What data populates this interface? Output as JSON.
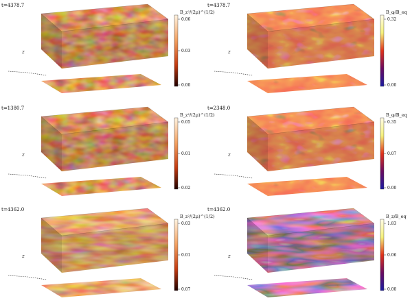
{
  "panels": [
    {
      "time": "t=4378.7",
      "colorbar_label": "B_z²/(2μ)^(1/2)",
      "ticks": [
        "0.06",
        "0.03",
        "0.00"
      ],
      "cmap": "heat",
      "axis_label": "z"
    },
    {
      "time": "t=4378.7",
      "colorbar_label": "B_φ/B_eq",
      "ticks": [
        "0.32",
        "",
        "0.00"
      ],
      "cmap": "dyn",
      "axis_label": "z"
    },
    {
      "time": "t=1380.7",
      "colorbar_label": "B_z²/(2μ)^(1/2)",
      "ticks": [
        "0.05",
        "0.01",
        "0.02"
      ],
      "cmap": "heat",
      "axis_label": "z"
    },
    {
      "time": "t=2348.0",
      "colorbar_label": "B_φ/B_eq",
      "ticks": [
        "0.35",
        "0.07",
        "0.00"
      ],
      "cmap": "dyn",
      "axis_label": "z"
    },
    {
      "time": "t=4362.0",
      "colorbar_label": "B_z²/(2μ)^(1/2)",
      "ticks": [
        "0.03",
        "0.01",
        "0.07"
      ],
      "cmap": "heat",
      "axis_label": "z"
    },
    {
      "time": "t=4362.0",
      "colorbar_label": "B_z/B_eq",
      "ticks": [
        "1.83",
        "0.06",
        "0.00"
      ],
      "cmap": "dyn",
      "axis_label": "z"
    }
  ],
  "colors": {
    "heat_dark": "#3a0800",
    "heat_mid": "#c8461a",
    "heat_light": "#ffe2c4",
    "dyn_red": "#e0321a",
    "dyn_yellow": "#f4f07a",
    "dyn_blue": "#1a1aa0",
    "dyn_white": "#fffbe6"
  }
}
